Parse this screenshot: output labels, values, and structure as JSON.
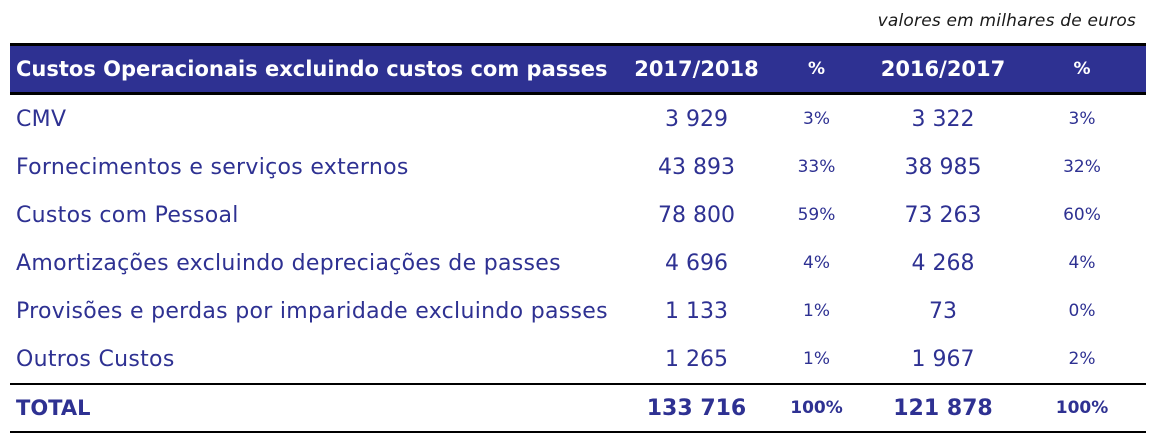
{
  "note": "valores em milhares de euros",
  "header": {
    "label": "Custos Operacionais excluindo custos com passes",
    "col1": "2017/2018",
    "pct1": "%",
    "col2": "2016/2017",
    "pct2": "%"
  },
  "rows": [
    {
      "label": "CMV",
      "v1": "3 929",
      "p1": "3%",
      "v2": "3 322",
      "p2": "3%"
    },
    {
      "label": "Fornecimentos e serviços externos",
      "v1": "43 893",
      "p1": "33%",
      "v2": "38 985",
      "p2": "32%"
    },
    {
      "label": "Custos com Pessoal",
      "v1": "78 800",
      "p1": "59%",
      "v2": "73 263",
      "p2": "60%"
    },
    {
      "label": "Amortizações excluindo depreciações de passes",
      "v1": "4 696",
      "p1": "4%",
      "v2": "4 268",
      "p2": "4%"
    },
    {
      "label": "Provisões e perdas por imparidade excluindo passes",
      "v1": "1 133",
      "p1": "1%",
      "v2": "73",
      "p2": "0%"
    },
    {
      "label": "Outros Custos",
      "v1": "1 265",
      "p1": "1%",
      "v2": "1 967",
      "p2": "2%"
    }
  ],
  "total": {
    "label": "TOTAL",
    "v1": "133 716",
    "p1": "100%",
    "v2": "121 878",
    "p2": "100%"
  },
  "colors": {
    "header_bg": "#2e3192",
    "text": "#2e3192"
  }
}
